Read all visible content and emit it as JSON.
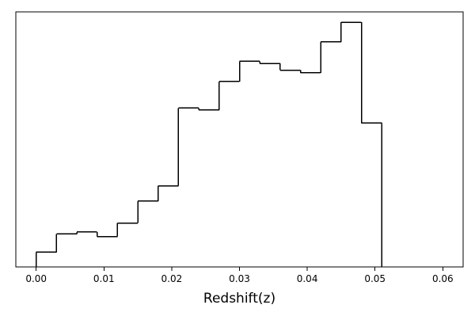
{
  "chart_data": {
    "type": "histogram",
    "title": "",
    "xlabel": "Redshift(z)",
    "ylabel": "",
    "xlim": [
      -0.003,
      0.063
    ],
    "bin_edges": [
      0.0,
      0.003,
      0.006,
      0.009,
      0.012,
      0.015,
      0.018,
      0.021,
      0.024,
      0.027,
      0.03,
      0.033,
      0.036,
      0.039,
      0.042,
      0.045,
      0.048,
      0.051
    ],
    "values": [
      0.058,
      0.129,
      0.137,
      0.119,
      0.172,
      0.258,
      0.318,
      0.623,
      0.615,
      0.727,
      0.806,
      0.798,
      0.771,
      0.761,
      0.882,
      0.959,
      0.564
    ],
    "ylim": [
      0,
      1
    ],
    "x_ticks": [
      "0.00",
      "0.01",
      "0.02",
      "0.03",
      "0.04",
      "0.05",
      "0.06"
    ],
    "x_tick_values": [
      0.0,
      0.01,
      0.02,
      0.03,
      0.04,
      0.05,
      0.06
    ],
    "y_ticks": [],
    "histtype": "step",
    "grid": false,
    "legend": "none",
    "colors": {
      "line": "#000000",
      "axes": "#000000",
      "background": "#ffffff"
    }
  }
}
